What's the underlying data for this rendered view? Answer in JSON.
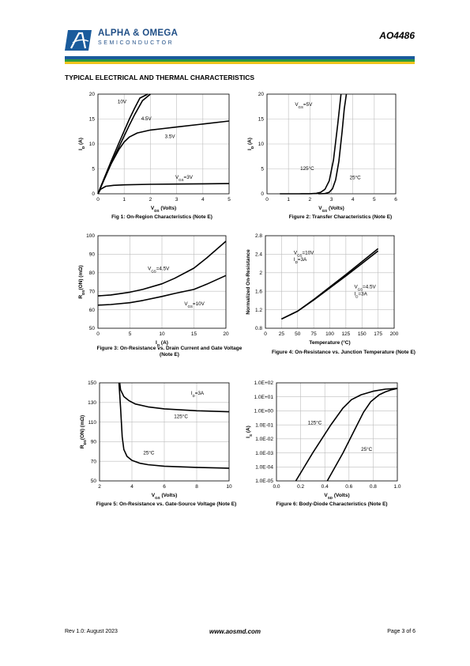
{
  "header": {
    "brand_line1": "ALPHA & OMEGA",
    "brand_line2": "SEMICONDUCTOR",
    "part_number": "AO4486",
    "colors": {
      "blue": "#1a5b9c",
      "green": "#2e9a3e",
      "yellow": "#f0c419"
    }
  },
  "section_title": "TYPICAL ELECTRICAL AND THERMAL CHARACTERISTICS",
  "chart_data": [
    {
      "id": "fig1",
      "type": "line",
      "caption": "Fig 1: On-Region Characteristics (Note E)",
      "xlabel": "VDS (Volts)",
      "ylabel": "ID (A)",
      "xlim": [
        0,
        5
      ],
      "ylim": [
        0,
        20
      ],
      "xticks": [
        0,
        1,
        2,
        3,
        4,
        5
      ],
      "yticks": [
        0,
        5,
        10,
        15,
        20
      ],
      "series": [
        {
          "name": "10V",
          "x": [
            0,
            0.2,
            0.5,
            0.8,
            1.0,
            1.2,
            1.4,
            1.6,
            1.9
          ],
          "y": [
            0,
            2.6,
            6.5,
            10.2,
            12.6,
            15,
            17.2,
            19.2,
            20
          ]
        },
        {
          "name": "4.5V",
          "x": [
            0,
            0.2,
            0.5,
            0.8,
            1.0,
            1.2,
            1.4,
            1.7,
            2.0
          ],
          "y": [
            0,
            2.4,
            6.0,
            9.4,
            11.6,
            13.8,
            15.9,
            18.7,
            20
          ]
        },
        {
          "name": "3.5V",
          "x": [
            0,
            0.2,
            0.5,
            0.8,
            1.0,
            1.2,
            1.5,
            2.0,
            2.5,
            3.0,
            4.0,
            5.0
          ],
          "y": [
            0,
            2.5,
            6.0,
            8.9,
            10.4,
            11.4,
            12.2,
            12.8,
            13.1,
            13.4,
            14.0,
            14.6
          ]
        },
        {
          "name": "VGS=3V",
          "x": [
            0,
            0.1,
            0.3,
            0.6,
            1.0,
            2.0,
            3.0,
            4.0,
            5.0
          ],
          "y": [
            0,
            0.9,
            1.5,
            1.7,
            1.8,
            1.9,
            1.95,
            2.0,
            2.05
          ]
        }
      ],
      "annotations": [
        {
          "text": "10V",
          "x": 0.75,
          "y": 18.2
        },
        {
          "text": "4.5V",
          "x": 1.65,
          "y": 14.8
        },
        {
          "text": "3.5V",
          "x": 2.55,
          "y": 11.2
        },
        {
          "text": "VGS=3V",
          "x": 2.95,
          "y": 3.0
        }
      ]
    },
    {
      "id": "fig2",
      "type": "line",
      "caption": "Figure 2: Transfer Characteristics (Note E)",
      "xlabel": "VGS (Volts)",
      "ylabel": "ID (A)",
      "xlim": [
        0,
        6
      ],
      "ylim": [
        0,
        20
      ],
      "xticks": [
        0,
        1,
        2,
        3,
        4,
        5,
        6
      ],
      "yticks": [
        0,
        5,
        10,
        15,
        20
      ],
      "series": [
        {
          "name": "125°C",
          "x": [
            0.6,
            1.5,
            2.0,
            2.3,
            2.5,
            2.7,
            2.9,
            3.1,
            3.3,
            3.45
          ],
          "y": [
            0,
            0,
            0.02,
            0.1,
            0.3,
            0.9,
            2.6,
            6.8,
            14.0,
            20
          ]
        },
        {
          "name": "25°C",
          "x": [
            2.4,
            2.7,
            2.9,
            3.05,
            3.2,
            3.35,
            3.5,
            3.6,
            3.7
          ],
          "y": [
            0,
            0.05,
            0.3,
            1.0,
            2.8,
            6.5,
            12.5,
            17.0,
            20
          ]
        }
      ],
      "annotations": [
        {
          "text": "VGS=5V",
          "x": 1.3,
          "y": 17.6
        },
        {
          "text": "125°C",
          "x": 1.55,
          "y": 4.8
        },
        {
          "text": "25°C",
          "x": 3.85,
          "y": 2.9
        }
      ]
    },
    {
      "id": "fig3",
      "type": "line",
      "caption": "Figure 3: On-Resistance vs. Drain Current and Gate Voltage (Note E)",
      "xlabel": "ID (A)",
      "ylabel": "RDS(ON) (mΩ)",
      "xlim": [
        0,
        20
      ],
      "ylim": [
        50,
        100
      ],
      "xticks": [
        0,
        5,
        10,
        15,
        20
      ],
      "yticks": [
        50,
        60,
        70,
        80,
        90,
        100
      ],
      "series": [
        {
          "name": "VGS=4.5V",
          "x": [
            0,
            2,
            5,
            7,
            10,
            12,
            15,
            17,
            20
          ],
          "y": [
            67.5,
            68.0,
            69.5,
            71.0,
            74.0,
            77.0,
            82.5,
            88.0,
            97.0
          ]
        },
        {
          "name": "VGS=10V",
          "x": [
            0,
            2,
            5,
            7,
            10,
            12,
            15,
            17,
            20
          ],
          "y": [
            62.5,
            62.8,
            63.8,
            65.0,
            67.2,
            68.8,
            71.0,
            73.8,
            78.5
          ]
        }
      ],
      "annotations": [
        {
          "text": "VGS=4.5V",
          "x": 7.8,
          "y": 81.5
        },
        {
          "text": "VGS=10V",
          "x": 13.5,
          "y": 62.5
        }
      ]
    },
    {
      "id": "fig4",
      "type": "line",
      "caption": "Figure 4: On-Resistance vs. Junction Temperature (Note E)",
      "xlabel": "Temperature (°C)",
      "ylabel": "Normalized On-Resistance",
      "xlim": [
        0,
        200
      ],
      "ylim": [
        0.8,
        2.8
      ],
      "xticks": [
        0,
        25,
        50,
        75,
        100,
        125,
        150,
        175,
        200
      ],
      "yticks": [
        0.8,
        1.2,
        1.6,
        2,
        2.4,
        2.8
      ],
      "series": [
        {
          "name": "VGS=10V ID=3A",
          "x": [
            25,
            50,
            75,
            100,
            125,
            150,
            175
          ],
          "y": [
            1.0,
            1.17,
            1.41,
            1.67,
            1.93,
            2.2,
            2.47
          ]
        },
        {
          "name": "VGS=4.5V ID=3A",
          "x": [
            25,
            50,
            75,
            100,
            125,
            150,
            175
          ],
          "y": [
            1.0,
            1.17,
            1.42,
            1.69,
            1.96,
            2.24,
            2.52
          ]
        }
      ],
      "annotations": [
        {
          "text": "VGS=10V",
          "x": 44,
          "y": 2.4
        },
        {
          "text": "ID=3A",
          "x": 44,
          "y": 2.25
        },
        {
          "text": "VGS=4.5V",
          "x": 138,
          "y": 1.66
        },
        {
          "text": "ID=3A",
          "x": 138,
          "y": 1.51
        }
      ]
    },
    {
      "id": "fig5",
      "type": "line",
      "caption": "Figure 5: On-Resistance vs. Gate-Source Voltage (Note E)",
      "xlabel": "VGS (Volts)",
      "ylabel": "RDS(ON) (mΩ)",
      "xlim": [
        2,
        10
      ],
      "ylim": [
        50,
        150
      ],
      "xticks": [
        2,
        4,
        6,
        8,
        10
      ],
      "yticks": [
        50,
        70,
        90,
        110,
        130,
        150
      ],
      "series": [
        {
          "name": "125°C",
          "x": [
            3.25,
            3.3,
            3.5,
            3.8,
            4.2,
            5.0,
            6.0,
            8.0,
            10.0
          ],
          "y": [
            150,
            143,
            136,
            132,
            128.5,
            125.5,
            123.5,
            121.5,
            120.5
          ]
        },
        {
          "name": "25°C",
          "x": [
            3.2,
            3.3,
            3.4,
            3.5,
            3.7,
            4.0,
            4.5,
            5.0,
            6.0,
            8.0,
            10.0
          ],
          "y": [
            150,
            125,
            95,
            82,
            75,
            71,
            68,
            66.5,
            65,
            63.8,
            63
          ]
        }
      ],
      "annotations": [
        {
          "text": "ID=3A",
          "x": 7.65,
          "y": 138
        },
        {
          "text": "125°C",
          "x": 6.6,
          "y": 114
        },
        {
          "text": "25°C",
          "x": 4.7,
          "y": 77
        }
      ]
    },
    {
      "id": "fig6",
      "type": "line",
      "scale": "log-y",
      "caption": "Figure 6: Body-Diode Characteristics (Note E)",
      "xlabel": "VSD (Volts)",
      "ylabel": "IS (A)",
      "xlim": [
        0,
        1.0
      ],
      "ylim": [
        -5,
        2
      ],
      "xticks": [
        0.0,
        0.2,
        0.4,
        0.6,
        0.8,
        1.0
      ],
      "ytick_labels": [
        "1.0E-05",
        "1.0E-04",
        "1.0E-03",
        "1.0E-02",
        "1.0E-01",
        "1.0E+00",
        "1.0E+01",
        "1.0E+02"
      ],
      "series": [
        {
          "name": "125°C",
          "x": [
            0.16,
            0.3,
            0.45,
            0.55,
            0.62,
            0.7,
            0.8,
            0.9,
            1.0
          ],
          "y_log10": [
            -5,
            -3,
            -1,
            0.2,
            0.8,
            1.15,
            1.4,
            1.55,
            1.6
          ]
        },
        {
          "name": "25°C",
          "x": [
            0.42,
            0.55,
            0.65,
            0.72,
            0.78,
            0.85,
            0.9,
            0.95,
            1.0
          ],
          "y_log10": [
            -5,
            -3,
            -1.3,
            -0.1,
            0.65,
            1.15,
            1.35,
            1.5,
            1.6
          ]
        }
      ],
      "annotations": [
        {
          "text": "125°C",
          "x": 0.26,
          "y_log10": -0.95
        },
        {
          "text": "25°C",
          "x": 0.7,
          "y_log10": -2.85
        }
      ]
    }
  ],
  "footer": {
    "revision": "Rev 1.0: August 2023",
    "website": "www.aosmd.com",
    "page": "Page 3 of 6"
  }
}
